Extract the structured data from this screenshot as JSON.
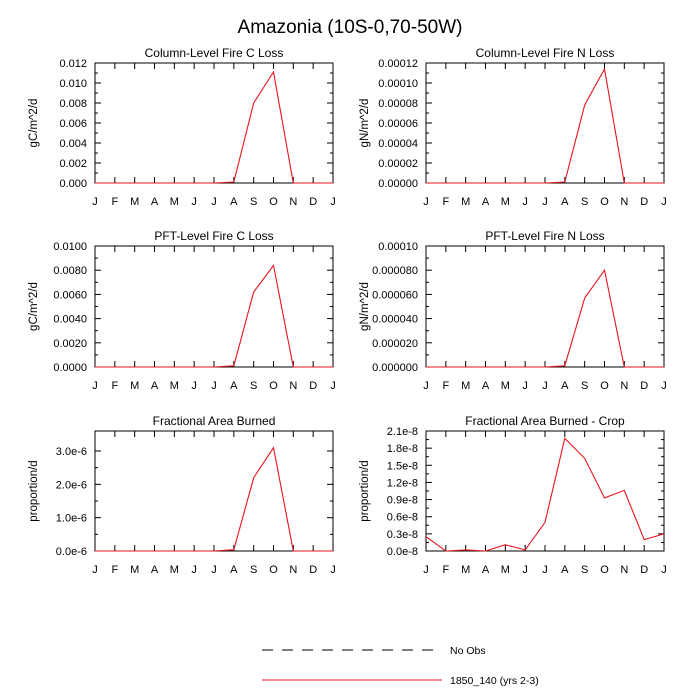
{
  "figure_title": "Amazonia (10S-0,70-50W)",
  "legend": [
    {
      "label": "No Obs",
      "style": "dashed",
      "color": "#000000"
    },
    {
      "label": "1850_140 (yrs 2-3)",
      "style": "solid",
      "color": "#e8141e"
    }
  ],
  "chart_data": [
    {
      "type": "line",
      "title": "Column-Level Fire C Loss",
      "ylabel": "gC/m^2/d",
      "categories": [
        "J",
        "F",
        "M",
        "A",
        "M",
        "J",
        "J",
        "A",
        "S",
        "O",
        "N",
        "D",
        "J"
      ],
      "ylim": [
        0,
        0.012
      ],
      "yticks": [
        "0.000",
        "0.002",
        "0.004",
        "0.006",
        "0.008",
        "0.010",
        "0.012"
      ],
      "series": [
        {
          "name": "1850_140 (yrs 2-3)",
          "color": "#e8141e",
          "values": [
            0,
            0,
            0,
            0,
            0,
            0,
            0,
            0.0001,
            0.008,
            0.0111,
            0,
            0,
            0
          ]
        }
      ]
    },
    {
      "type": "line",
      "title": "Column-Level Fire N Loss",
      "ylabel": "gN/m^2/d",
      "categories": [
        "J",
        "F",
        "M",
        "A",
        "M",
        "J",
        "J",
        "A",
        "S",
        "O",
        "N",
        "D",
        "J"
      ],
      "ylim": [
        0,
        0.00012
      ],
      "yticks": [
        "0.00000",
        "0.00002",
        "0.00004",
        "0.00006",
        "0.00008",
        "0.00010",
        "0.00012"
      ],
      "series": [
        {
          "name": "1850_140 (yrs 2-3)",
          "color": "#e8141e",
          "values": [
            0,
            0,
            0,
            0,
            0,
            0,
            0,
            1e-06,
            7.8e-05,
            0.000114,
            0,
            0,
            0
          ]
        }
      ]
    },
    {
      "type": "line",
      "title": "PFT-Level Fire C Loss",
      "ylabel": "gC/m^2/d",
      "categories": [
        "J",
        "F",
        "M",
        "A",
        "M",
        "J",
        "J",
        "A",
        "S",
        "O",
        "N",
        "D",
        "J"
      ],
      "ylim": [
        0,
        0.01
      ],
      "yticks": [
        "0.0000",
        "0.0020",
        "0.0040",
        "0.0060",
        "0.0080",
        "0.0100"
      ],
      "series": [
        {
          "name": "1850_140 (yrs 2-3)",
          "color": "#e8141e",
          "values": [
            0,
            0,
            0,
            0,
            0,
            0,
            0,
            0.0001,
            0.0062,
            0.0084,
            0,
            0,
            0
          ]
        }
      ]
    },
    {
      "type": "line",
      "title": "PFT-Level Fire N Loss",
      "ylabel": "gN/m^2/d",
      "categories": [
        "J",
        "F",
        "M",
        "A",
        "M",
        "J",
        "J",
        "A",
        "S",
        "O",
        "N",
        "D",
        "J"
      ],
      "ylim": [
        0,
        0.0001
      ],
      "yticks": [
        "0.000000",
        "0.000020",
        "0.000040",
        "0.000060",
        "0.000080",
        "0.00010"
      ],
      "series": [
        {
          "name": "1850_140 (yrs 2-3)",
          "color": "#e8141e",
          "values": [
            0,
            0,
            0,
            0,
            0,
            0,
            0,
            1e-06,
            5.7e-05,
            8e-05,
            0,
            0,
            0
          ]
        }
      ]
    },
    {
      "type": "line",
      "title": "Fractional Area Burned",
      "ylabel": "proportion/d",
      "categories": [
        "J",
        "F",
        "M",
        "A",
        "M",
        "J",
        "J",
        "A",
        "S",
        "O",
        "N",
        "D",
        "J"
      ],
      "ylim": [
        0,
        3.6e-06
      ],
      "yticks": [
        "0.0e-6",
        "1.0e-6",
        "2.0e-6",
        "3.0e-6"
      ],
      "series": [
        {
          "name": "1850_140 (yrs 2-3)",
          "color": "#e8141e",
          "values": [
            0,
            0,
            0,
            0,
            0,
            0,
            0,
            4e-08,
            2.2e-06,
            3.1e-06,
            0,
            0,
            0
          ]
        }
      ]
    },
    {
      "type": "line",
      "title": "Fractional Area Burned - Crop",
      "ylabel": "proportion/d",
      "categories": [
        "J",
        "F",
        "M",
        "A",
        "M",
        "J",
        "J",
        "A",
        "S",
        "O",
        "N",
        "D",
        "J"
      ],
      "ylim": [
        0,
        2.1e-08
      ],
      "yticks": [
        "0.0e-8",
        "0.3e-8",
        "0.6e-8",
        "0.9e-8",
        "1.2e-8",
        "1.5e-8",
        "1.8e-8",
        "2.1e-8"
      ],
      "series": [
        {
          "name": "1850_140 (yrs 2-3)",
          "color": "#e8141e",
          "values": [
            2.5e-09,
            0,
            2e-10,
            0,
            1.1e-09,
            2e-10,
            5e-09,
            1.97e-08,
            1.62e-08,
            9.3e-09,
            1.06e-08,
            2e-09,
            3e-09
          ]
        }
      ]
    }
  ]
}
